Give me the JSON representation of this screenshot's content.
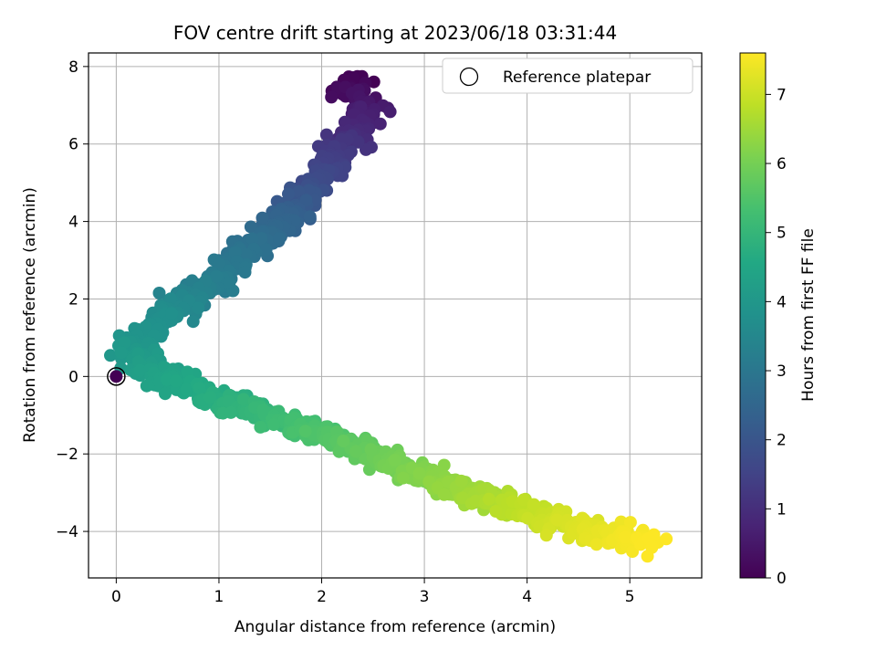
{
  "chart_data": {
    "type": "scatter",
    "title": "FOV centre drift starting at 2023/06/18 03:31:44",
    "xlabel": "Angular distance from reference (arcmin)",
    "ylabel": "Rotation from reference (arcmin)",
    "xlim": [
      -0.27,
      5.7
    ],
    "ylim": [
      -5.2,
      8.35
    ],
    "xticks": [
      0,
      1,
      2,
      3,
      4,
      5
    ],
    "xtick_labels": [
      "0",
      "1",
      "2",
      "3",
      "4",
      "5"
    ],
    "yticks": [
      -4,
      -2,
      0,
      2,
      4,
      6,
      8
    ],
    "ytick_labels": [
      "−4",
      "−2",
      "0",
      "2",
      "4",
      "6",
      "8"
    ],
    "grid": true,
    "legend": {
      "position": "top-right",
      "entries": [
        "Reference platepar"
      ]
    },
    "colorbar": {
      "label": "Hours from first FF file",
      "range": [
        0,
        7.6
      ],
      "ticks": [
        0,
        1,
        2,
        3,
        4,
        5,
        6,
        7
      ],
      "tick_labels": [
        "0",
        "1",
        "2",
        "3",
        "4",
        "5",
        "6",
        "7"
      ],
      "colormap": "viridis"
    },
    "reference_point": {
      "x": 0,
      "y": 0,
      "hours": 0
    },
    "series": [
      {
        "trend_points": [
          {
            "x": 2.25,
            "y": 7.7,
            "hours": 0.0
          },
          {
            "x": 2.45,
            "y": 6.8,
            "hours": 0.6
          },
          {
            "x": 2.2,
            "y": 5.9,
            "hours": 1.2
          },
          {
            "x": 1.95,
            "y": 5.0,
            "hours": 1.7
          },
          {
            "x": 1.7,
            "y": 4.2,
            "hours": 2.3
          },
          {
            "x": 1.3,
            "y": 3.3,
            "hours": 2.8
          },
          {
            "x": 0.9,
            "y": 2.4,
            "hours": 3.2
          },
          {
            "x": 0.45,
            "y": 1.5,
            "hours": 3.7
          },
          {
            "x": 0.15,
            "y": 0.7,
            "hours": 4.0
          },
          {
            "x": 0.35,
            "y": 0.1,
            "hours": 4.3
          },
          {
            "x": 1.0,
            "y": -0.6,
            "hours": 4.7
          },
          {
            "x": 1.8,
            "y": -1.3,
            "hours": 5.3
          },
          {
            "x": 2.5,
            "y": -2.0,
            "hours": 5.8
          },
          {
            "x": 3.2,
            "y": -2.8,
            "hours": 6.3
          },
          {
            "x": 3.9,
            "y": -3.4,
            "hours": 6.8
          },
          {
            "x": 4.5,
            "y": -3.9,
            "hours": 7.2
          },
          {
            "x": 5.2,
            "y": -4.3,
            "hours": 7.6
          }
        ],
        "count": 1400
      }
    ]
  }
}
